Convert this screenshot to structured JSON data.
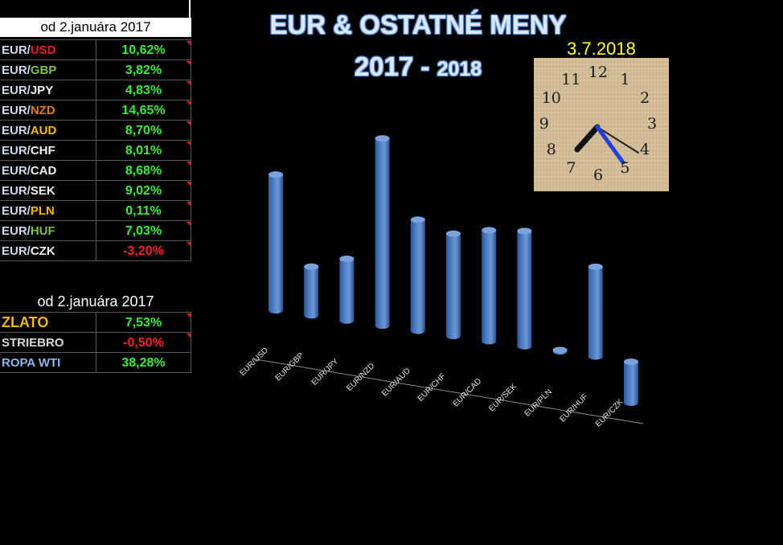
{
  "panel": {
    "header": "od 2.januára  2017",
    "fx_rows": [
      {
        "base": "EUR/",
        "quote": "USD",
        "quote_color": "#e62020",
        "value": "10,62%",
        "value_color": "#3aeb3a",
        "flag": true
      },
      {
        "base": "EUR/",
        "quote": "GBP",
        "quote_color": "#7fbf4d",
        "value": "3,82%",
        "value_color": "#3aeb3a",
        "flag": true
      },
      {
        "base": "EUR/",
        "quote": "JPY",
        "quote_color": "#f0f0f0",
        "value": "4,83%",
        "value_color": "#3aeb3a",
        "flag": true
      },
      {
        "base": "EUR/",
        "quote": "NZD",
        "quote_color": "#e07a20",
        "value": "14,65%",
        "value_color": "#3aeb3a",
        "flag": true
      },
      {
        "base": "EUR/",
        "quote": "AUD",
        "quote_color": "#f5b800",
        "value": "8,70%",
        "value_color": "#3aeb3a",
        "flag": true
      },
      {
        "base": "EUR/",
        "quote": "CHF",
        "quote_color": "#f0f0f0",
        "value": "8,01%",
        "value_color": "#3aeb3a",
        "flag": true
      },
      {
        "base": "EUR/",
        "quote": "CAD",
        "quote_color": "#f0f0f0",
        "value": "8,68%",
        "value_color": "#3aeb3a",
        "flag": true
      },
      {
        "base": "EUR/",
        "quote": "SEK",
        "quote_color": "#f0f0f0",
        "value": "9,02%",
        "value_color": "#3aeb3a",
        "flag": true
      },
      {
        "base": "EUR/",
        "quote": "PLN",
        "quote_color": "#f5b800",
        "value": "0,11%",
        "value_color": "#3aeb3a",
        "flag": true
      },
      {
        "base": "EUR/",
        "quote": "HUF",
        "quote_color": "#7fbf4d",
        "value": "7,03%",
        "value_color": "#3aeb3a",
        "flag": true
      },
      {
        "base": "EUR/",
        "quote": "CZK",
        "quote_color": "#f0f0f0",
        "value": "-3,20%",
        "value_color": "#ff2020",
        "flag": true
      }
    ],
    "commodities_header": "od 2.januára 2017",
    "commodity_rows": [
      {
        "name": "ZLATO",
        "name_color": "#f5b800",
        "value": "7,53%",
        "value_color": "#3aeb3a",
        "flag": true
      },
      {
        "name": "STRIEBRO",
        "name_color": "#d8d8d8",
        "value": "-0,50%",
        "value_color": "#ff2020",
        "flag": true
      },
      {
        "name": "ROPA WTI",
        "name_color": "#8fb4e8",
        "value": "38,28%",
        "value_color": "#3aeb3a",
        "flag": false
      }
    ]
  },
  "title": "EUR & OSTATNÉ MENY",
  "subtitle_main": "2017 - ",
  "subtitle_small": "2018",
  "clock": {
    "date": "3.7.2018",
    "numbers": [
      "12",
      "1",
      "2",
      "3",
      "4",
      "5",
      "6",
      "7",
      "8",
      "9",
      "10",
      "11"
    ],
    "hour_hand_color": "#111111",
    "minute_hand_color": "#1f3fe0",
    "second_hand_color": "#222222"
  },
  "chart_data": {
    "type": "bar",
    "categories": [
      "EUR/USD",
      "EUR/GBP",
      "EUR/JPY",
      "EUR/NZD",
      "EUR/AUD",
      "EUR/CHF",
      "EUR/CAD",
      "EUR/SEK",
      "EUR/PLN",
      "EUR/HUF",
      "EUR/CZK"
    ],
    "values": [
      10.62,
      3.82,
      4.83,
      14.65,
      8.7,
      8.01,
      8.68,
      9.02,
      0.11,
      7.03,
      -3.2
    ],
    "bar_color": "#4f7fc4",
    "style": "3d-cylinder",
    "grid": false
  }
}
